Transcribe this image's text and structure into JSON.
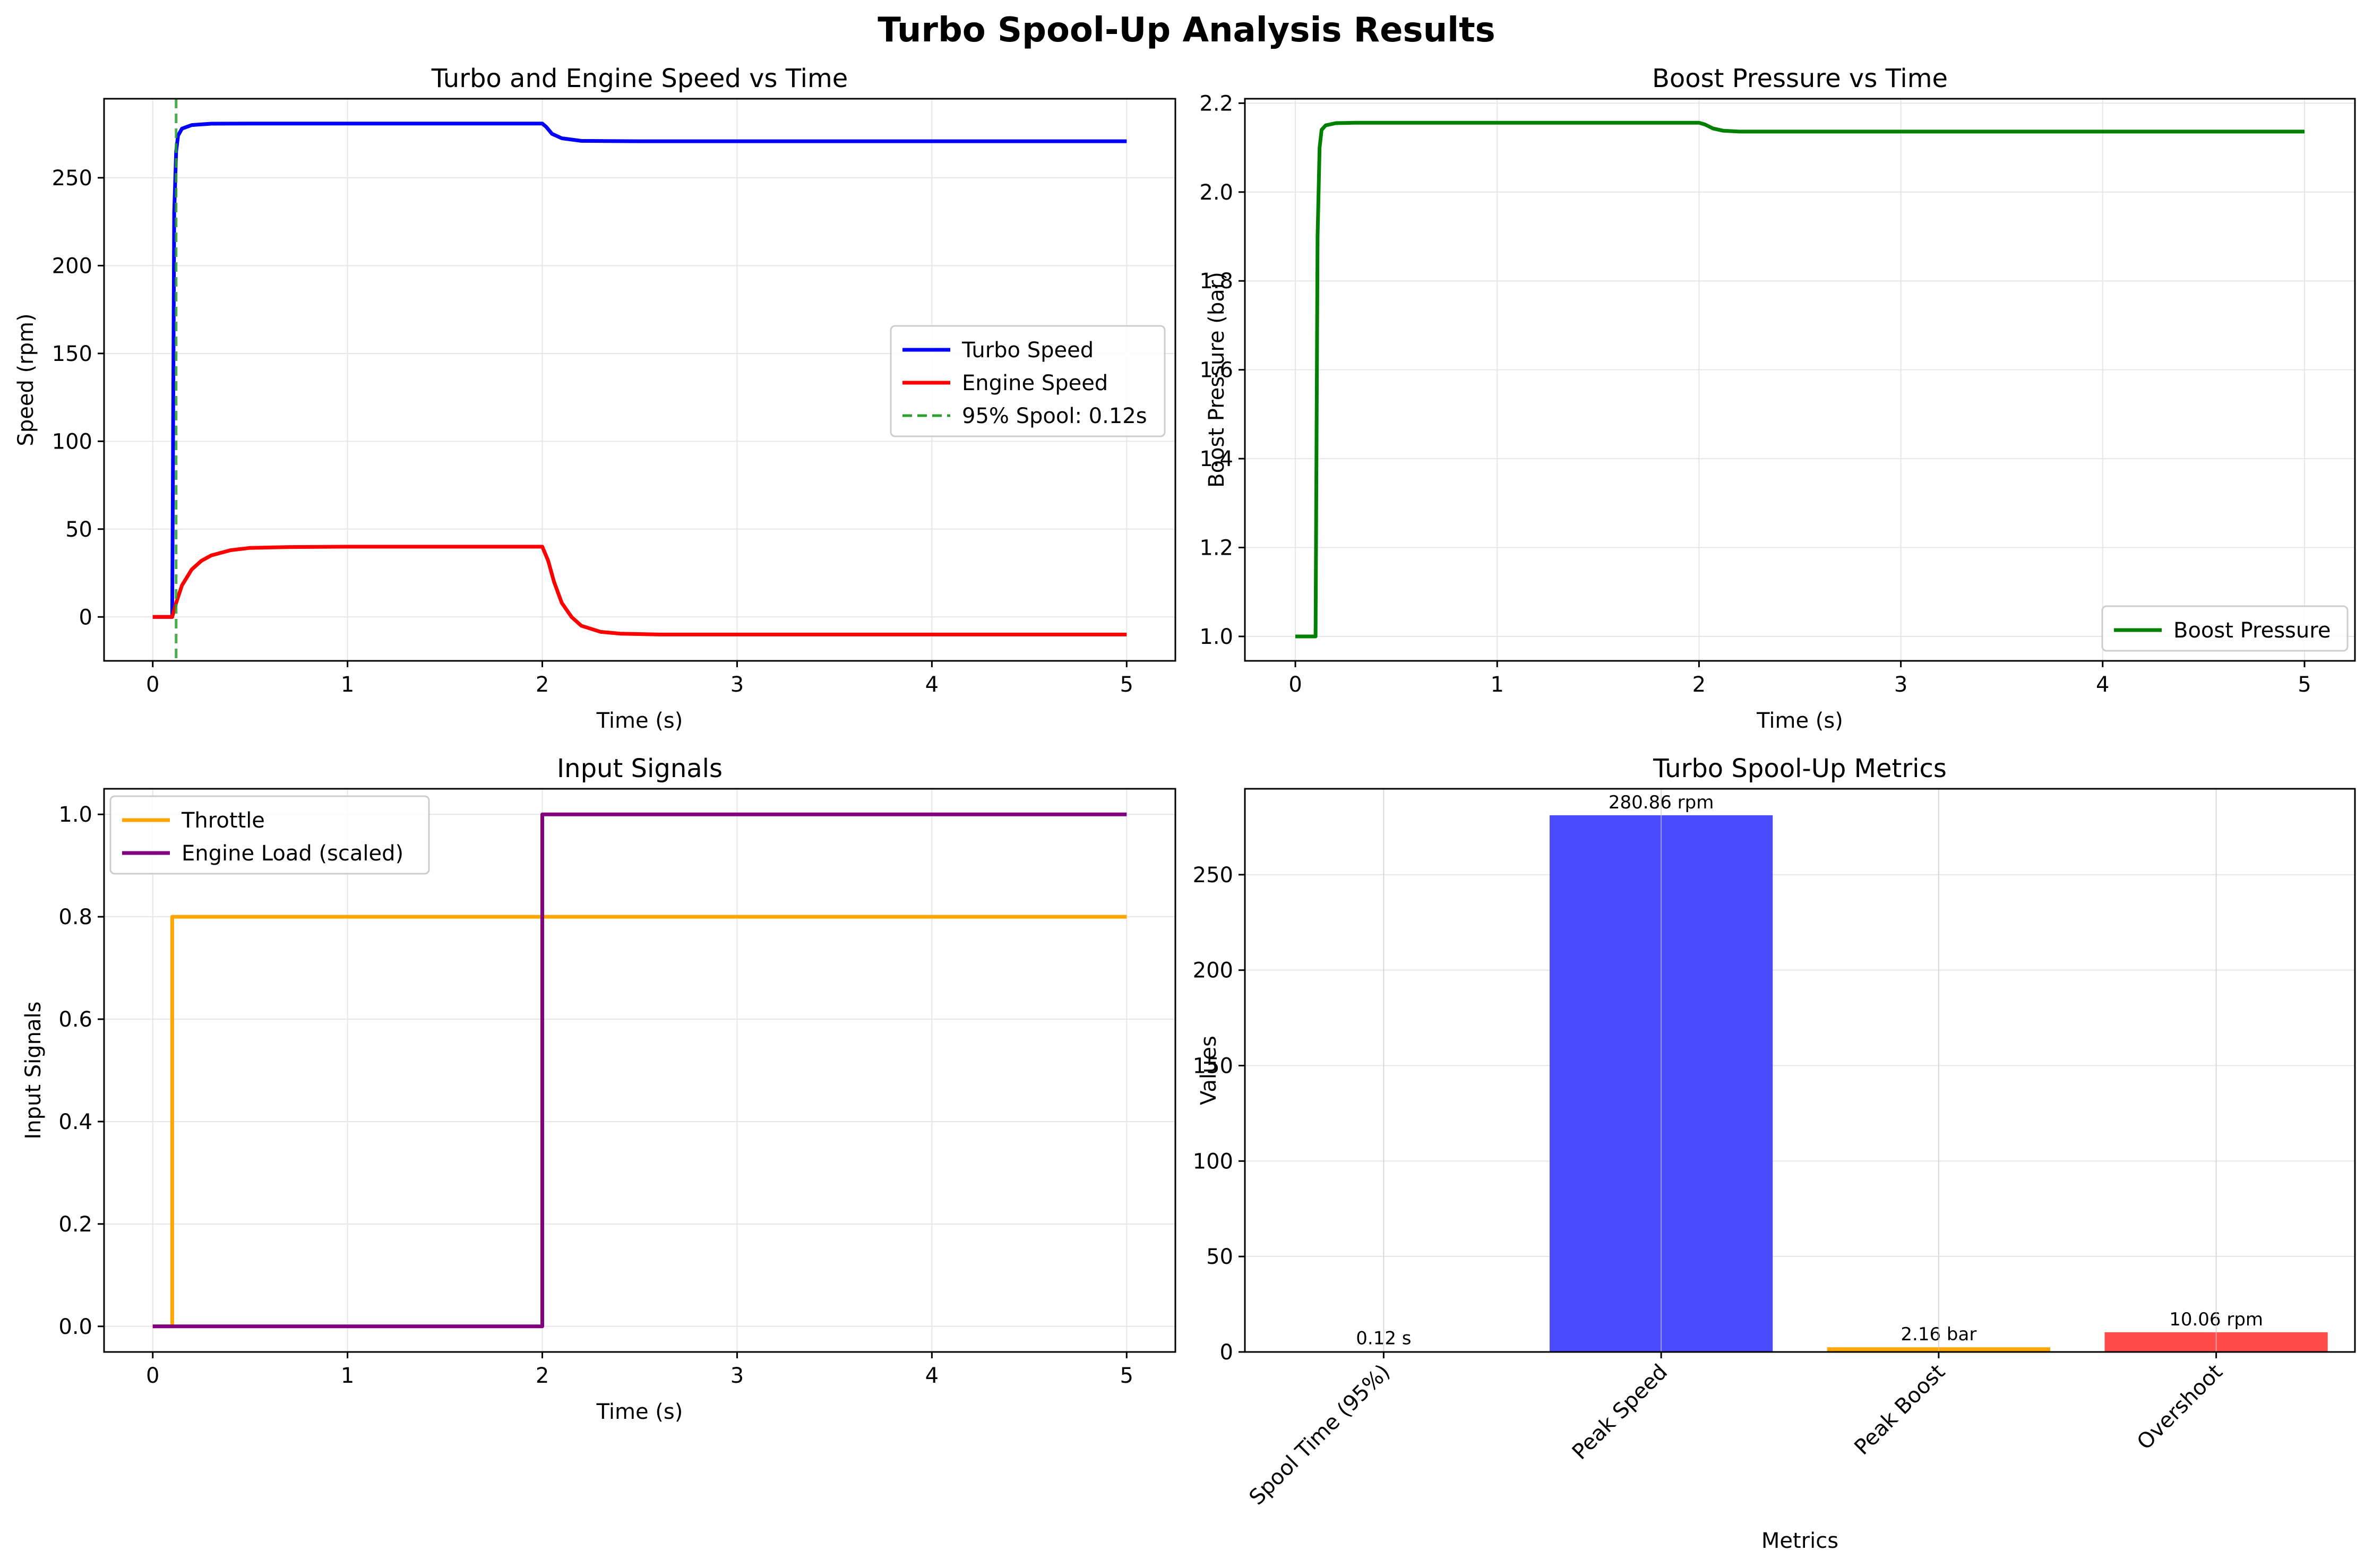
{
  "figure_title": "Turbo Spool-Up Analysis Results",
  "colors": {
    "turbo_speed": "#0000ff",
    "engine_speed": "#ff0000",
    "spool_line": "#2ca02c",
    "boost": "#008000",
    "throttle": "#ffa500",
    "engine_load": "#800080",
    "bar_spool": "#90ee90",
    "bar_peak_speed": "#4a4aff",
    "bar_peak_boost": "#ffa500",
    "bar_overshoot": "#ff4a4a",
    "grid": "#e6e6e6"
  },
  "chart_data": [
    {
      "type": "line",
      "title": "Turbo and Engine Speed vs Time",
      "xlabel": "Time (s)",
      "ylabel": "Speed (rpm)",
      "xlim": [
        -0.25,
        5.25
      ],
      "ylim": [
        -25,
        295
      ],
      "xticks": [
        0,
        1,
        2,
        3,
        4,
        5
      ],
      "yticks": [
        0,
        50,
        100,
        150,
        200,
        250
      ],
      "grid": true,
      "legend_position": "center-right",
      "series": [
        {
          "name": "Turbo Speed",
          "color_key": "turbo_speed",
          "x": [
            0,
            0.1,
            0.11,
            0.12,
            0.13,
            0.15,
            0.2,
            0.3,
            0.5,
            1.0,
            2.0,
            2.02,
            2.05,
            2.1,
            2.2,
            2.5,
            3.0,
            4.0,
            5.0
          ],
          "y": [
            0,
            0,
            230,
            265,
            274,
            278,
            280,
            280.8,
            280.86,
            280.86,
            280.86,
            279,
            275,
            272.5,
            271,
            270.8,
            270.8,
            270.8,
            270.8
          ]
        },
        {
          "name": "Engine Speed",
          "color_key": "engine_speed",
          "x": [
            0,
            0.1,
            0.12,
            0.15,
            0.2,
            0.25,
            0.3,
            0.4,
            0.5,
            0.7,
            1.0,
            1.5,
            2.0,
            2.03,
            2.06,
            2.1,
            2.15,
            2.2,
            2.3,
            2.4,
            2.6,
            3.0,
            4.0,
            5.0
          ],
          "y": [
            0,
            0,
            8,
            18,
            27,
            32,
            35,
            38,
            39.3,
            39.8,
            40,
            40,
            40,
            32,
            20,
            8,
            0,
            -5,
            -8.5,
            -9.5,
            -10,
            -10,
            -10,
            -10
          ]
        }
      ],
      "vlines": [
        {
          "name": "95% Spool: 0.12s",
          "x": 0.12,
          "color_key": "spool_line",
          "style": "dashed"
        }
      ]
    },
    {
      "type": "line",
      "title": "Boost Pressure vs Time",
      "xlabel": "Time (s)",
      "ylabel": "Boost Pressure (bar)",
      "xlim": [
        -0.25,
        5.25
      ],
      "ylim": [
        0.945,
        2.21
      ],
      "xticks": [
        0,
        1,
        2,
        3,
        4,
        5
      ],
      "yticks": [
        1.0,
        1.2,
        1.4,
        1.6,
        1.8,
        2.0,
        2.2
      ],
      "grid": true,
      "legend_position": "bottom-right",
      "series": [
        {
          "name": "Boost Pressure",
          "color_key": "boost",
          "x": [
            0,
            0.1,
            0.11,
            0.12,
            0.13,
            0.15,
            0.2,
            0.3,
            0.5,
            1.0,
            2.0,
            2.03,
            2.07,
            2.12,
            2.2,
            2.5,
            3.0,
            4.0,
            5.0
          ],
          "y": [
            1.0,
            1.0,
            1.9,
            2.1,
            2.14,
            2.15,
            2.155,
            2.156,
            2.156,
            2.156,
            2.156,
            2.152,
            2.143,
            2.138,
            2.136,
            2.136,
            2.136,
            2.136,
            2.136
          ]
        }
      ]
    },
    {
      "type": "line",
      "title": "Input Signals",
      "xlabel": "Time (s)",
      "ylabel": "Input Signals",
      "xlim": [
        -0.25,
        5.25
      ],
      "ylim": [
        -0.05,
        1.05
      ],
      "xticks": [
        0,
        1,
        2,
        3,
        4,
        5
      ],
      "yticks": [
        0.0,
        0.2,
        0.4,
        0.6,
        0.8,
        1.0
      ],
      "grid": true,
      "legend_position": "top-left",
      "series": [
        {
          "name": "Throttle",
          "color_key": "throttle",
          "x": [
            0,
            0.1,
            0.1,
            5.0
          ],
          "y": [
            0,
            0,
            0.8,
            0.8
          ]
        },
        {
          "name": "Engine Load (scaled)",
          "color_key": "engine_load",
          "x": [
            0,
            2.0,
            2.0,
            5.0
          ],
          "y": [
            0,
            0,
            1.0,
            1.0
          ]
        }
      ]
    },
    {
      "type": "bar",
      "title": "Turbo Spool-Up Metrics",
      "xlabel": "Metrics",
      "ylabel": "Values",
      "ylim": [
        0,
        295
      ],
      "yticks": [
        0,
        50,
        100,
        150,
        200,
        250
      ],
      "grid": true,
      "categories": [
        "Spool Time (95%)",
        "Peak Speed",
        "Peak Boost",
        "Overshoot"
      ],
      "values": [
        0.12,
        280.86,
        2.16,
        10.06
      ],
      "value_labels": [
        "0.12 s",
        "280.86 rpm",
        "2.16 bar",
        "10.06 rpm"
      ],
      "color_keys": [
        "bar_spool",
        "bar_peak_speed",
        "bar_peak_boost",
        "bar_overshoot"
      ]
    }
  ]
}
